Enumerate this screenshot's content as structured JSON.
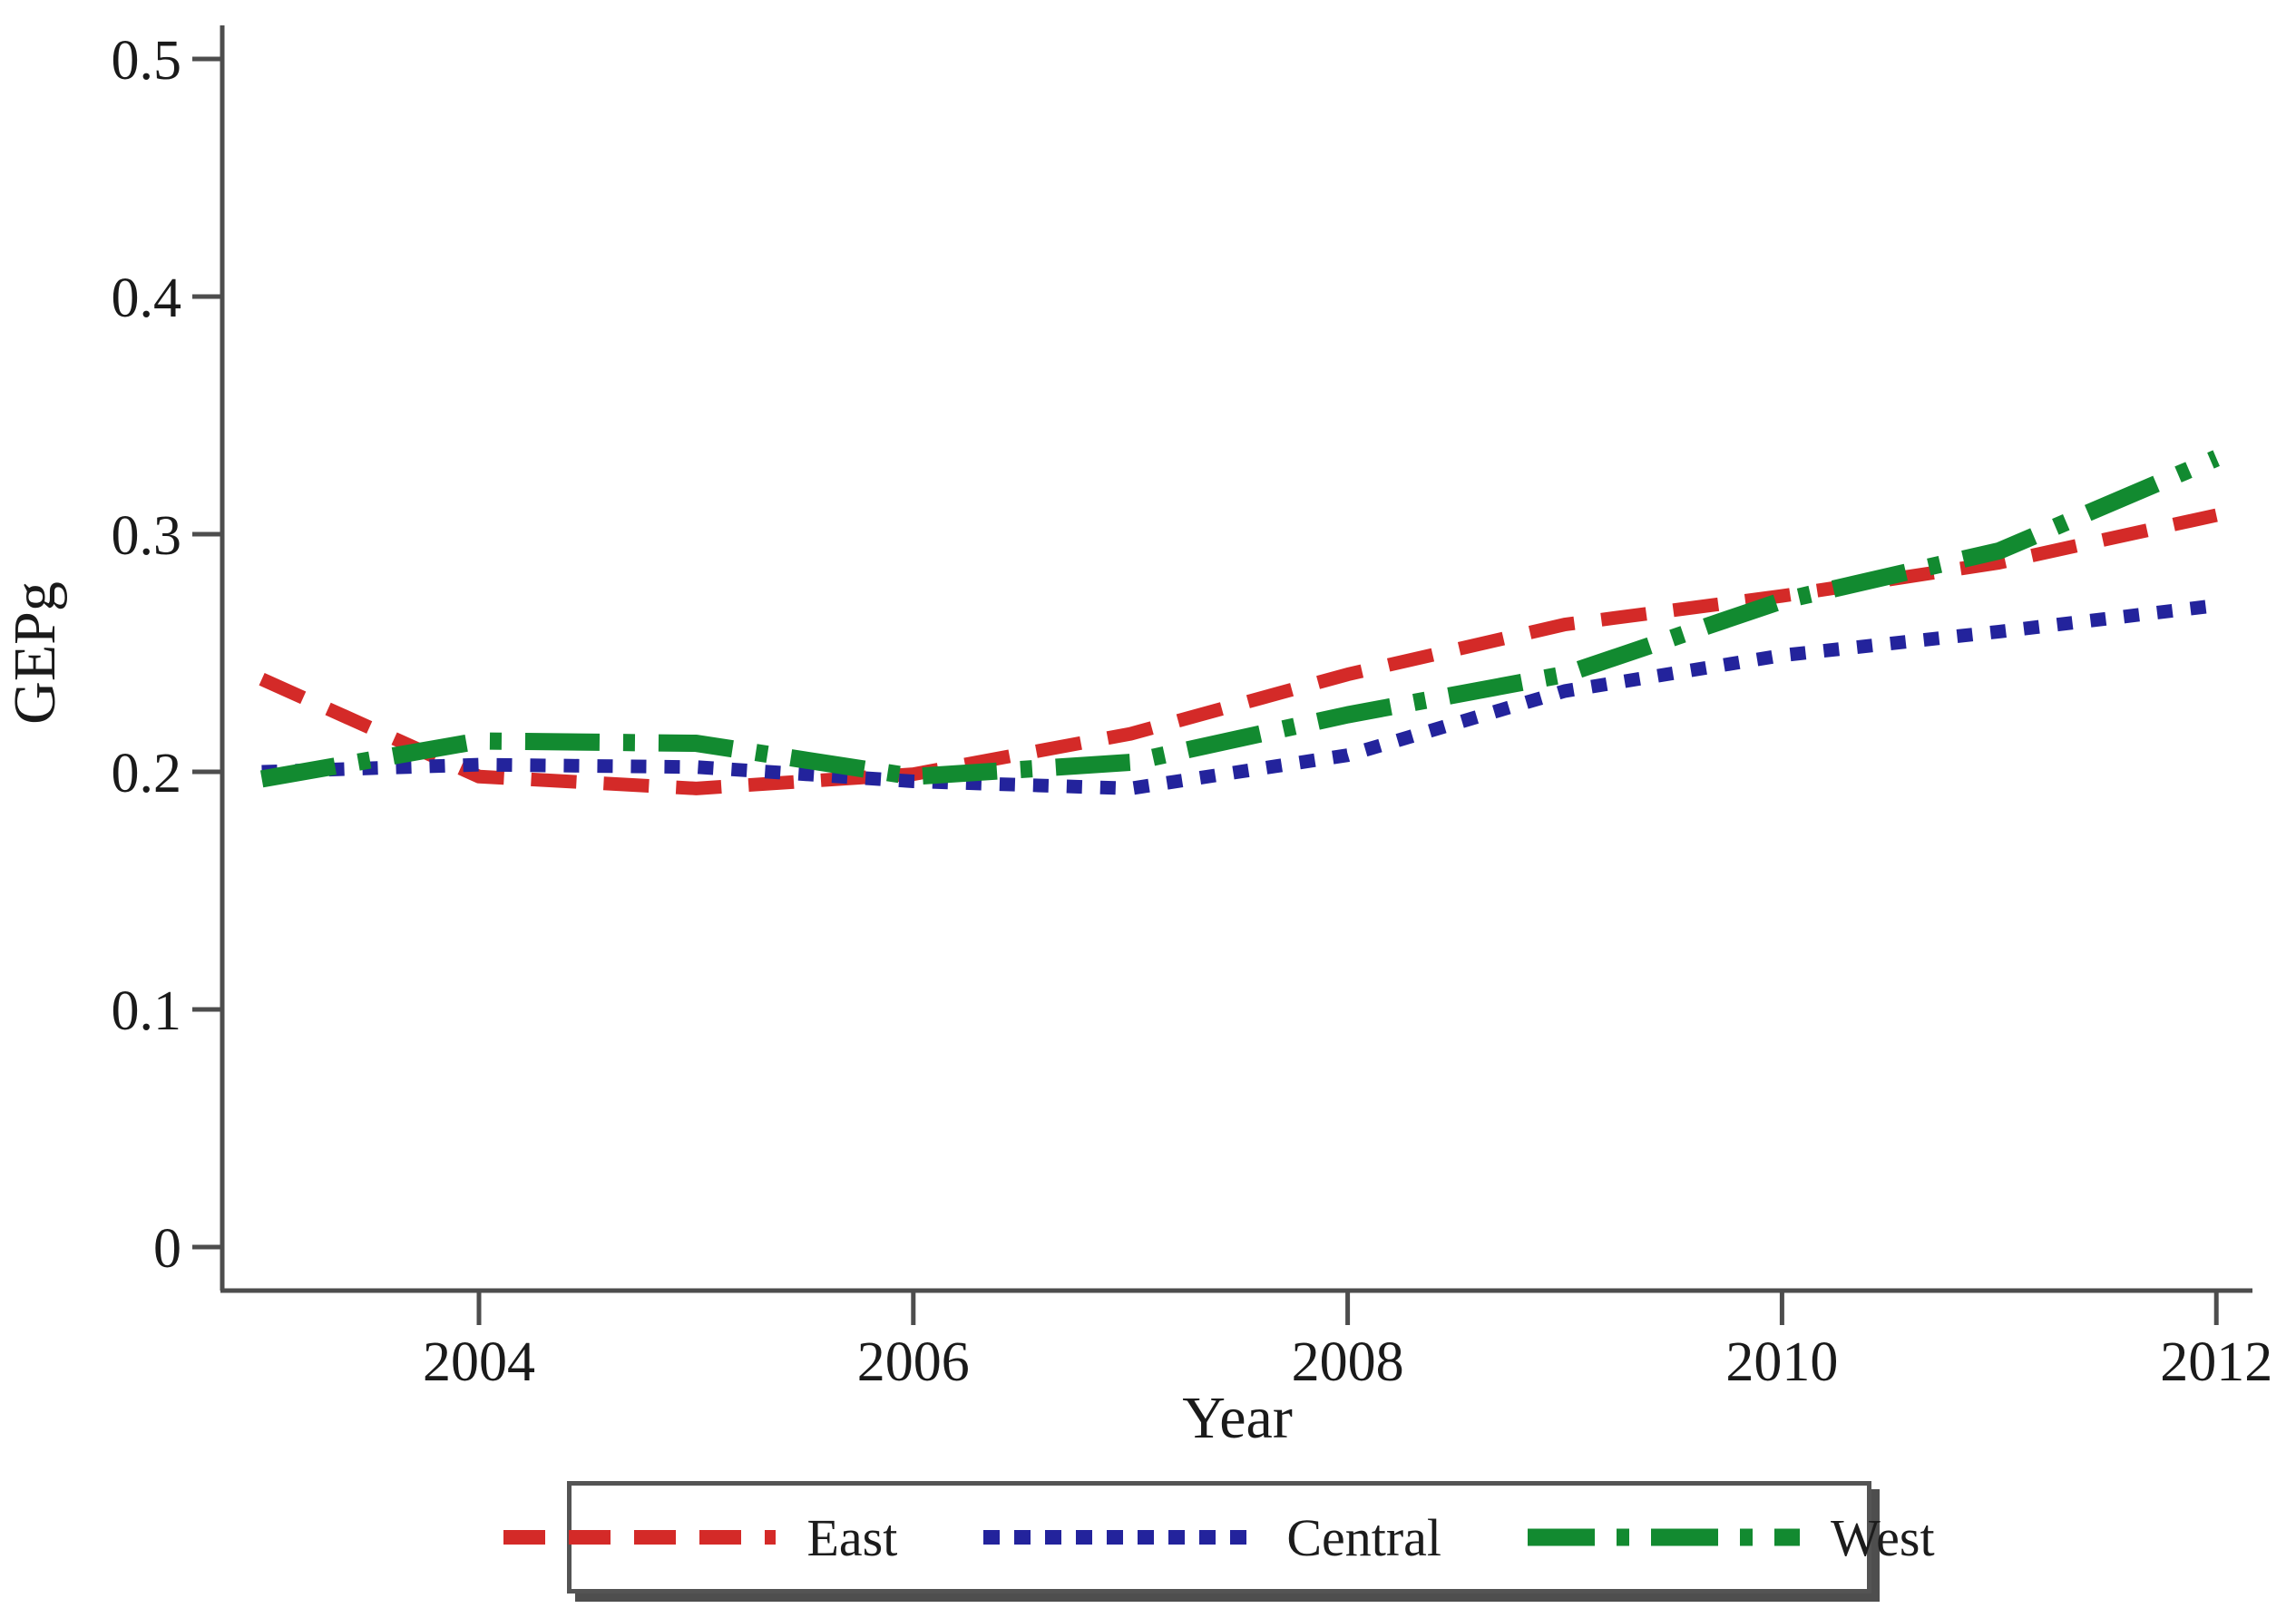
{
  "chart_data": {
    "type": "line",
    "title": "",
    "xlabel": "Year",
    "ylabel": "GEPg",
    "x": [
      2003,
      2004,
      2005,
      2006,
      2007,
      2008,
      2009,
      2010,
      2011,
      2012
    ],
    "xlim": [
      2003,
      2012
    ],
    "ylim": [
      0,
      0.5
    ],
    "x_ticks": [
      2004,
      2006,
      2008,
      2010,
      2012
    ],
    "y_ticks": [
      0,
      0.1,
      0.2,
      0.3,
      0.4,
      0.5
    ],
    "y_tick_labels": [
      "0",
      "0.1",
      "0.2",
      "0.3",
      "0.4",
      "0.5"
    ],
    "grid": false,
    "legend_position": "bottom-center",
    "background_color": "#ffffff",
    "axis_color": "#4d4d4d",
    "series": [
      {
        "name": "East",
        "color": "#d42a28",
        "dash_style": "dashed",
        "values": [
          0.239,
          0.198,
          0.193,
          0.199,
          0.216,
          0.241,
          0.262,
          0.274,
          0.288,
          0.308
        ]
      },
      {
        "name": "Central",
        "color": "#23239c",
        "dash_style": "dotted",
        "values": [
          0.2,
          0.203,
          0.202,
          0.196,
          0.193,
          0.207,
          0.234,
          0.249,
          0.259,
          0.27
        ]
      },
      {
        "name": "West",
        "color": "#128a30",
        "dash_style": "dash-dot",
        "values": [
          0.197,
          0.213,
          0.212,
          0.198,
          0.204,
          0.224,
          0.241,
          0.272,
          0.293,
          0.332
        ]
      }
    ]
  }
}
